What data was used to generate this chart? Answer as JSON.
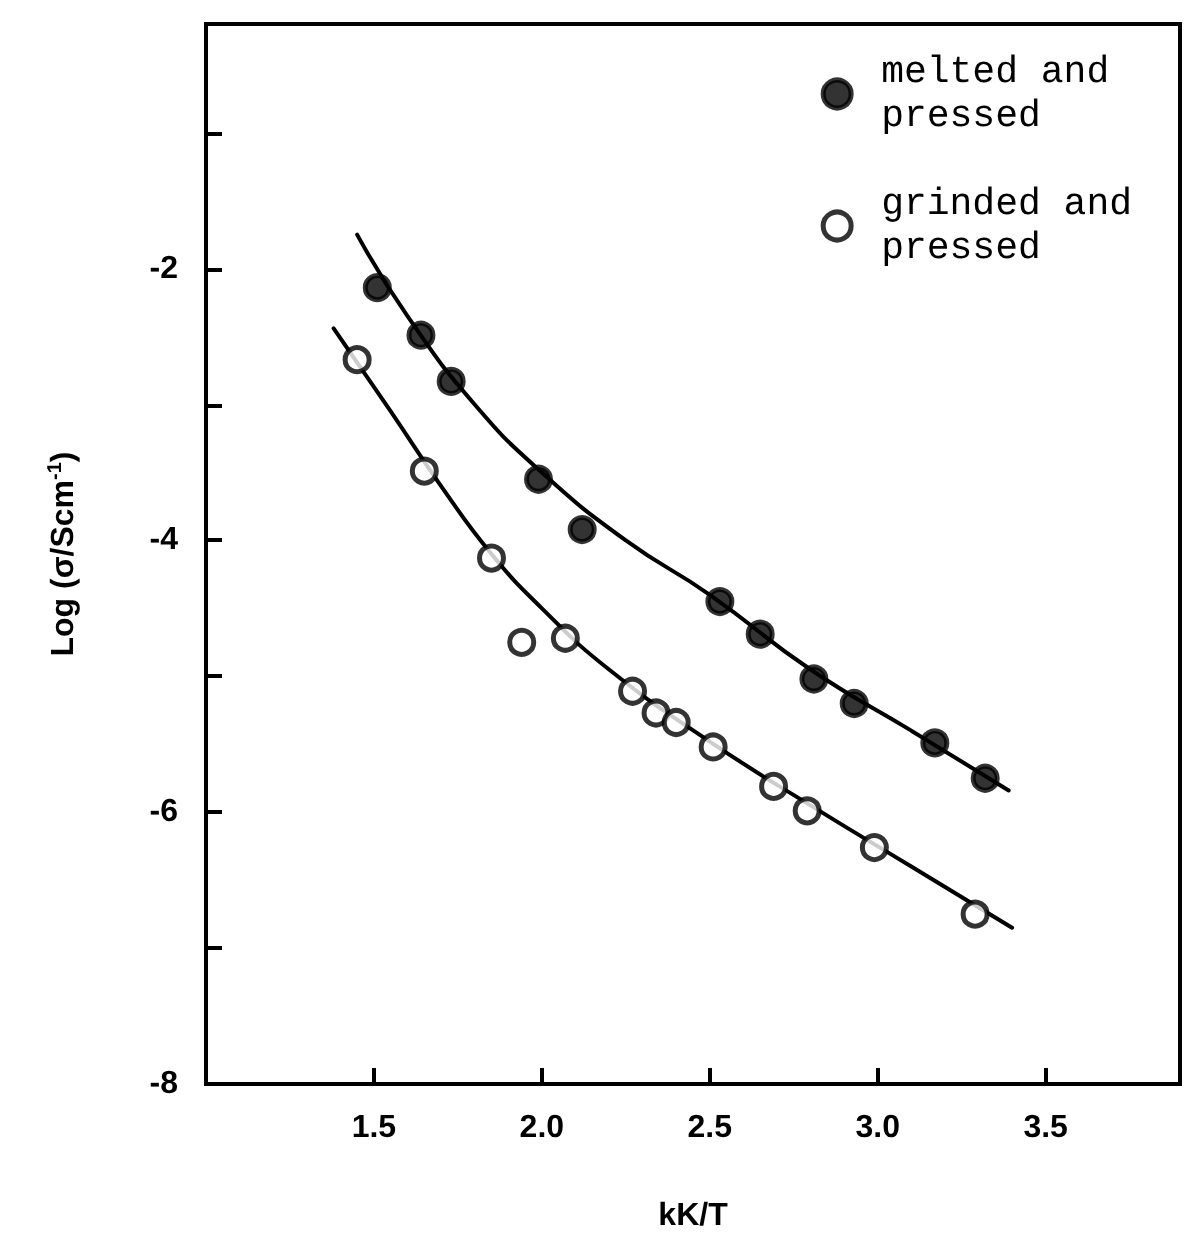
{
  "chart_data": {
    "type": "scatter",
    "xlabel": "kK/T",
    "ylabel": "Log (σ/Scm$^{-1}$)",
    "xlim": [
      1.0,
      3.9
    ],
    "ylim": [
      -8,
      -0.2
    ],
    "xticks": [
      1.5,
      {
        "value": 2,
        "label": "2.0"
      },
      2.5,
      {
        "value": 3,
        "label": "3.0"
      },
      3.5
    ],
    "yticks": [
      -8,
      {
        "value": -7,
        "label": null
      },
      -6,
      {
        "value": -5,
        "label": null
      },
      -4,
      {
        "value": -3,
        "label": null
      },
      -2,
      {
        "value": -1,
        "label": null
      }
    ],
    "grid": false,
    "legend": "top right",
    "marker": "circle",
    "series": [
      {
        "name": "melted and\npressed",
        "color": "#000000",
        "x": [
          1.51,
          1.64,
          1.73,
          1.99,
          2.12,
          2.53,
          2.65,
          2.81,
          2.93,
          3.17,
          3.32
        ],
        "values": [
          -2.14,
          -2.49,
          -2.83,
          -3.55,
          -3.92,
          -4.45,
          -4.69,
          -5.02,
          -5.2,
          -5.49,
          -5.75
        ]
      },
      {
        "name": "grinded and\npressed",
        "color": "#ffffff",
        "x": [
          1.45,
          1.65,
          1.85,
          1.94,
          2.07,
          2.27,
          2.34,
          2.4,
          2.51,
          2.69,
          2.79,
          2.99,
          3.29
        ],
        "values": [
          -2.67,
          -3.49,
          -4.13,
          -4.75,
          -4.72,
          -5.11,
          -5.27,
          -5.34,
          -5.52,
          -5.81,
          -5.99,
          -6.26,
          -6.75
        ]
      },
      {
        "type": "line",
        "color": "#000000",
        "marker": "none",
        "line_style": "solid",
        "x": [
          1.45,
          1.6,
          1.8,
          2.0,
          2.25,
          2.5,
          2.8,
          3.1,
          3.39
        ],
        "values": [
          -1.75,
          -2.35,
          -3.0,
          -3.5,
          -4.0,
          -4.4,
          -4.95,
          -5.4,
          -5.84
        ]
      },
      {
        "type": "line",
        "color": "#000000",
        "marker": "none",
        "line_style": "solid",
        "x": [
          1.38,
          1.55,
          1.7,
          1.85,
          2.0,
          2.2,
          2.5,
          2.8,
          3.1,
          3.4
        ],
        "values": [
          -2.44,
          -3.05,
          -3.6,
          -4.1,
          -4.5,
          -4.95,
          -5.48,
          -5.95,
          -6.4,
          -6.85
        ]
      }
    ]
  }
}
